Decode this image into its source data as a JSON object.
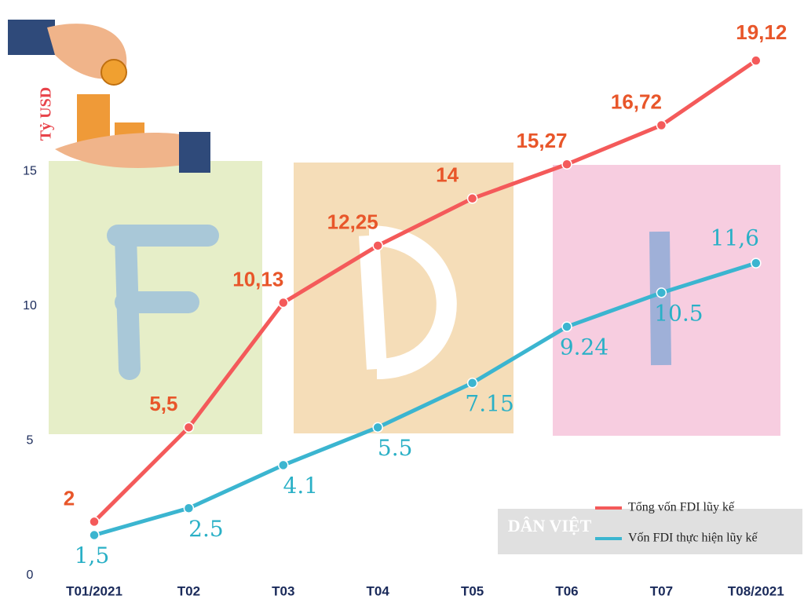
{
  "chart_data": {
    "type": "line",
    "y_label": "Tỷ USD",
    "watermark": "DÂN VIỆT",
    "categories": [
      "T01/2021",
      "T02",
      "T03",
      "T04",
      "T05",
      "T06",
      "T07",
      "T08/2021"
    ],
    "series": [
      {
        "name": "Tổng vốn FDI lũy kế",
        "color": "#f45a5a",
        "values": [
          2,
          5.5,
          10.13,
          12.25,
          14,
          15.27,
          16.72,
          19.12
        ],
        "value_labels": [
          "2",
          "5,5",
          "10,13",
          "12,25",
          "14",
          "15,27",
          "16,72",
          "19,12"
        ]
      },
      {
        "name": "Vốn FDI thực hiện lũy kế",
        "color": "#3bb5d0",
        "values": [
          1.5,
          2.5,
          4.1,
          5.5,
          7.15,
          9.24,
          10.5,
          11.6
        ],
        "value_labels": [
          "1,5",
          "2.5",
          "4.1",
          "5.5",
          "7.15",
          "9.24",
          "10.5",
          "11,6"
        ]
      }
    ],
    "ylim": [
      0,
      20
    ],
    "yticks": [
      0,
      5,
      10,
      15
    ],
    "grid": false
  }
}
